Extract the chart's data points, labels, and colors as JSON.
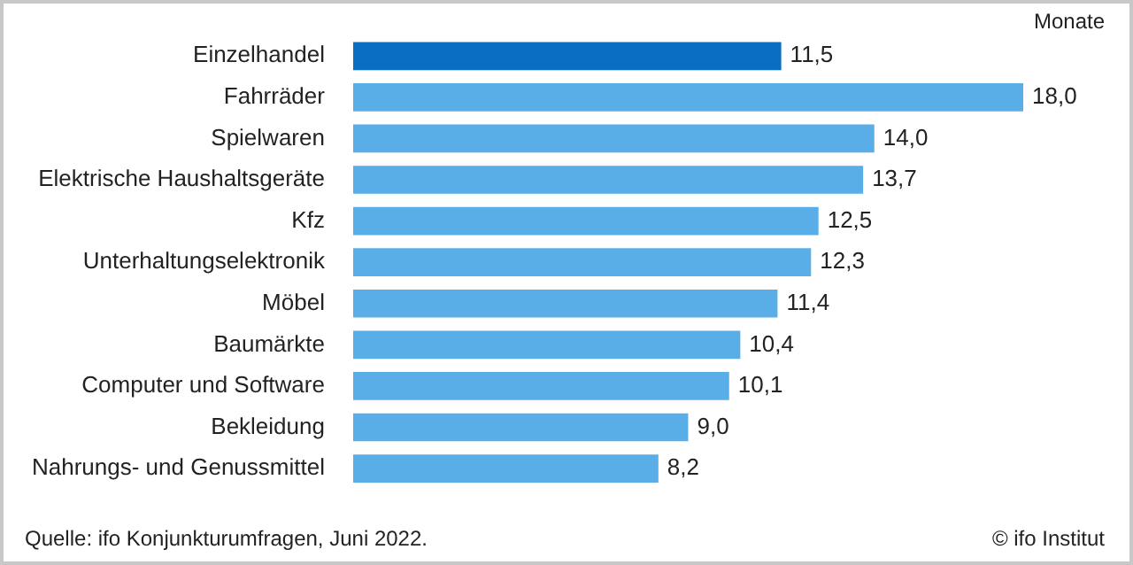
{
  "chart_data": {
    "type": "bar",
    "orientation": "horizontal",
    "xlabel": "Monate",
    "categories": [
      "Einzelhandel",
      "Fahrräder",
      "Spielwaren",
      "Elektrische Haushaltsgeräte",
      "Kfz",
      "Unterhaltungselektronik",
      "Möbel",
      "Baumärkte",
      "Computer und Software",
      "Bekleidung",
      "Nahrungs- und Genussmittel"
    ],
    "values": [
      11.5,
      18.0,
      14.0,
      13.7,
      12.5,
      12.3,
      11.4,
      10.4,
      10.1,
      9.0,
      8.2
    ],
    "colors": [
      "#0a6fc2",
      "#5aaee8",
      "#5aaee8",
      "#5aaee8",
      "#5aaee8",
      "#5aaee8",
      "#5aaee8",
      "#5aaee8",
      "#5aaee8",
      "#5aaee8",
      "#5aaee8"
    ],
    "value_labels": [
      "11,5",
      "18,0",
      "14,0",
      "13,7",
      "12,5",
      "12,3",
      "11,4",
      "10,4",
      "10,1",
      "9,0",
      "8,2"
    ],
    "tick_labels": "y",
    "legend": false,
    "annotations": [
      "Quelle: ifo Konjunkturumfragen, Juni 2022.",
      "© ifo Institut"
    ]
  }
}
